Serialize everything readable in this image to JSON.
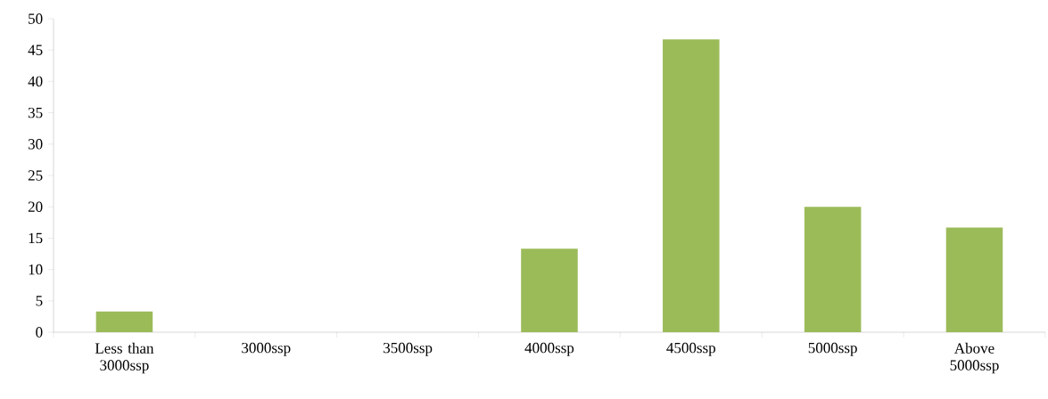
{
  "chart_data": {
    "type": "bar",
    "categories": [
      "Less than 3000ssp",
      "3000ssp",
      "3500ssp",
      "4000ssp",
      "4500ssp",
      "5000ssp",
      "Above 5000ssp"
    ],
    "values": [
      3.3,
      0,
      0,
      13.3,
      46.7,
      20,
      16.7
    ],
    "color": "#9bbb59",
    "ylim": [
      0,
      50
    ],
    "yticks": [
      0,
      5,
      10,
      15,
      20,
      25,
      30,
      35,
      40,
      45,
      50
    ],
    "grid": false
  }
}
